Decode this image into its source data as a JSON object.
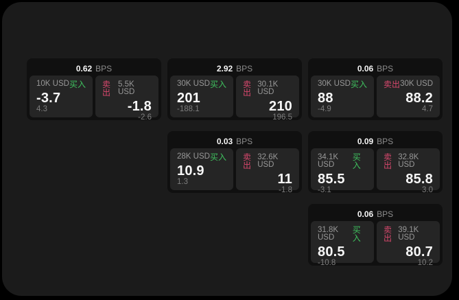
{
  "labels": {
    "buy": "买入",
    "sell": "卖出",
    "bps_unit": "BPS"
  },
  "colors": {
    "buy_green": "#3fc05e",
    "sell_red": "#d8486d",
    "panel_bg": "#1b1b1b",
    "card_bg": "#101010",
    "tile_bg": "#252525"
  },
  "cards": [
    {
      "bps": "0.62",
      "buy": {
        "amount": "10K USD",
        "value": "-3.7",
        "delta": "4.3"
      },
      "sell": {
        "amount": "5.5K USD",
        "value": "-1.8",
        "delta": "-2.6"
      }
    },
    {
      "bps": "2.92",
      "buy": {
        "amount": "30K USD",
        "value": "201",
        "delta": "-188.1"
      },
      "sell": {
        "amount": "30.1K USD",
        "value": "210",
        "delta": "196.5"
      }
    },
    {
      "bps": "0.06",
      "buy": {
        "amount": "30K USD",
        "value": "88",
        "delta": "-4.9"
      },
      "sell": {
        "amount": "30K USD",
        "value": "88.2",
        "delta": "4.7"
      }
    },
    {
      "bps": "0.03",
      "buy": {
        "amount": "28K USD",
        "value": "10.9",
        "delta": "1.3"
      },
      "sell": {
        "amount": "32.6K USD",
        "value": "11",
        "delta": "-1.8"
      }
    },
    {
      "bps": "0.09",
      "buy": {
        "amount": "34.1K USD",
        "value": "85.5",
        "delta": "-3.1"
      },
      "sell": {
        "amount": "32.8K USD",
        "value": "85.8",
        "delta": "3.0"
      }
    },
    {
      "bps": "0.06",
      "buy": {
        "amount": "31.8K USD",
        "value": "80.5",
        "delta": "-10.8"
      },
      "sell": {
        "amount": "39.1K USD",
        "value": "80.7",
        "delta": "10.2"
      }
    }
  ]
}
